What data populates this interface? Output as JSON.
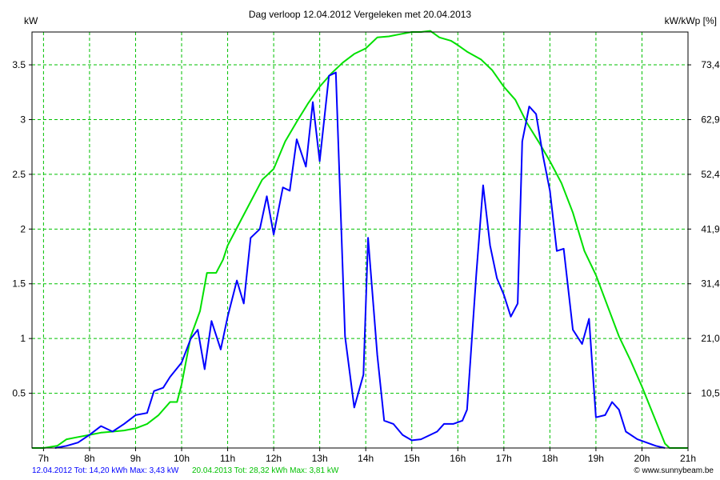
{
  "chart_data": {
    "type": "line",
    "title": "Dag  verloop 12.04.2012   Vergeleken met 20.04.2013",
    "ylabel_left": "kW",
    "ylabel_right": "kW/kWp [%]",
    "x_ticks": [
      "7h",
      "8h",
      "9h",
      "10h",
      "11h",
      "12h",
      "13h",
      "14h",
      "15h",
      "16h",
      "17h",
      "18h",
      "19h",
      "20h",
      "21h"
    ],
    "xlim": [
      6.75,
      21.0
    ],
    "ylim": [
      0,
      3.8
    ],
    "y_ticks": [
      0.5,
      1,
      1.5,
      2,
      2.5,
      3,
      3.5
    ],
    "y_tick_labels": [
      "0.5",
      "1",
      "1.5",
      "2",
      "2.5",
      "3",
      "3.5"
    ],
    "y2_tick_labels": [
      "10,5",
      "21,0",
      "31,4",
      "41,9",
      "52,4",
      "62,9",
      "73,4"
    ],
    "grid": true,
    "colors": {
      "series1": "#0000ff",
      "series2": "#00e000",
      "grid": "#00c000",
      "axis": "#000000"
    },
    "series": [
      {
        "name": "12.04.2012",
        "color": "#0000ff",
        "points": [
          [
            7.25,
            0.0
          ],
          [
            7.5,
            0.02
          ],
          [
            7.75,
            0.05
          ],
          [
            8.0,
            0.12
          ],
          [
            8.25,
            0.2
          ],
          [
            8.5,
            0.15
          ],
          [
            8.75,
            0.22
          ],
          [
            9.0,
            0.3
          ],
          [
            9.25,
            0.32
          ],
          [
            9.4,
            0.52
          ],
          [
            9.6,
            0.55
          ],
          [
            9.75,
            0.65
          ],
          [
            10.0,
            0.78
          ],
          [
            10.2,
            1.0
          ],
          [
            10.35,
            1.08
          ],
          [
            10.5,
            0.72
          ],
          [
            10.65,
            1.16
          ],
          [
            10.85,
            0.9
          ],
          [
            11.0,
            1.2
          ],
          [
            11.2,
            1.53
          ],
          [
            11.35,
            1.32
          ],
          [
            11.5,
            1.92
          ],
          [
            11.7,
            2.0
          ],
          [
            11.85,
            2.3
          ],
          [
            12.0,
            1.95
          ],
          [
            12.2,
            2.38
          ],
          [
            12.35,
            2.35
          ],
          [
            12.5,
            2.82
          ],
          [
            12.7,
            2.57
          ],
          [
            12.85,
            3.16
          ],
          [
            13.0,
            2.62
          ],
          [
            13.2,
            3.4
          ],
          [
            13.35,
            3.43
          ],
          [
            13.55,
            1.02
          ],
          [
            13.75,
            0.37
          ],
          [
            13.95,
            0.67
          ],
          [
            14.05,
            1.92
          ],
          [
            14.25,
            0.85
          ],
          [
            14.4,
            0.25
          ],
          [
            14.6,
            0.22
          ],
          [
            14.8,
            0.12
          ],
          [
            15.0,
            0.07
          ],
          [
            15.2,
            0.08
          ],
          [
            15.4,
            0.12
          ],
          [
            15.55,
            0.15
          ],
          [
            15.7,
            0.22
          ],
          [
            15.9,
            0.22
          ],
          [
            16.1,
            0.25
          ],
          [
            16.2,
            0.35
          ],
          [
            16.4,
            1.58
          ],
          [
            16.55,
            2.4
          ],
          [
            16.7,
            1.85
          ],
          [
            16.85,
            1.55
          ],
          [
            17.0,
            1.4
          ],
          [
            17.15,
            1.2
          ],
          [
            17.3,
            1.32
          ],
          [
            17.4,
            2.8
          ],
          [
            17.55,
            3.12
          ],
          [
            17.7,
            3.05
          ],
          [
            17.85,
            2.67
          ],
          [
            18.0,
            2.35
          ],
          [
            18.15,
            1.8
          ],
          [
            18.3,
            1.82
          ],
          [
            18.5,
            1.08
          ],
          [
            18.7,
            0.95
          ],
          [
            18.85,
            1.18
          ],
          [
            19.0,
            0.28
          ],
          [
            19.2,
            0.3
          ],
          [
            19.35,
            0.42
          ],
          [
            19.5,
            0.35
          ],
          [
            19.65,
            0.15
          ],
          [
            19.9,
            0.08
          ],
          [
            20.1,
            0.05
          ],
          [
            20.3,
            0.02
          ],
          [
            20.5,
            0.0
          ]
        ]
      },
      {
        "name": "20.04.2013",
        "color": "#00e000",
        "points": [
          [
            6.75,
            0.0
          ],
          [
            7.0,
            0.0
          ],
          [
            7.3,
            0.02
          ],
          [
            7.5,
            0.08
          ],
          [
            7.75,
            0.1
          ],
          [
            8.0,
            0.12
          ],
          [
            8.25,
            0.14
          ],
          [
            8.5,
            0.15
          ],
          [
            8.75,
            0.16
          ],
          [
            9.0,
            0.18
          ],
          [
            9.25,
            0.22
          ],
          [
            9.5,
            0.3
          ],
          [
            9.75,
            0.42
          ],
          [
            9.9,
            0.42
          ],
          [
            10.0,
            0.58
          ],
          [
            10.2,
            1.02
          ],
          [
            10.4,
            1.25
          ],
          [
            10.55,
            1.6
          ],
          [
            10.75,
            1.6
          ],
          [
            10.9,
            1.72
          ],
          [
            11.0,
            1.85
          ],
          [
            11.25,
            2.05
          ],
          [
            11.5,
            2.25
          ],
          [
            11.75,
            2.45
          ],
          [
            12.0,
            2.55
          ],
          [
            12.25,
            2.8
          ],
          [
            12.5,
            2.98
          ],
          [
            12.75,
            3.15
          ],
          [
            13.0,
            3.3
          ],
          [
            13.25,
            3.42
          ],
          [
            13.5,
            3.52
          ],
          [
            13.75,
            3.6
          ],
          [
            14.0,
            3.65
          ],
          [
            14.25,
            3.75
          ],
          [
            14.5,
            3.76
          ],
          [
            14.75,
            3.78
          ],
          [
            15.0,
            3.8
          ],
          [
            15.2,
            3.8
          ],
          [
            15.4,
            3.81
          ],
          [
            15.6,
            3.75
          ],
          [
            15.85,
            3.72
          ],
          [
            16.0,
            3.68
          ],
          [
            16.2,
            3.62
          ],
          [
            16.5,
            3.55
          ],
          [
            16.75,
            3.45
          ],
          [
            17.0,
            3.3
          ],
          [
            17.25,
            3.18
          ],
          [
            17.5,
            2.97
          ],
          [
            17.75,
            2.8
          ],
          [
            18.0,
            2.62
          ],
          [
            18.25,
            2.42
          ],
          [
            18.5,
            2.15
          ],
          [
            18.75,
            1.8
          ],
          [
            19.0,
            1.58
          ],
          [
            19.25,
            1.3
          ],
          [
            19.5,
            1.02
          ],
          [
            19.75,
            0.8
          ],
          [
            20.0,
            0.56
          ],
          [
            20.25,
            0.3
          ],
          [
            20.5,
            0.04
          ],
          [
            20.6,
            0.0
          ],
          [
            21.0,
            0.0
          ]
        ]
      }
    ]
  },
  "footer": {
    "series1_summary": "12.04.2012 Tot: 14,20 kWh Max: 3,43 kW",
    "series2_summary": "20.04.2013 Tot: 28,32 kWh Max: 3,81 kW",
    "credit": "© www.sunnybeam.be"
  }
}
